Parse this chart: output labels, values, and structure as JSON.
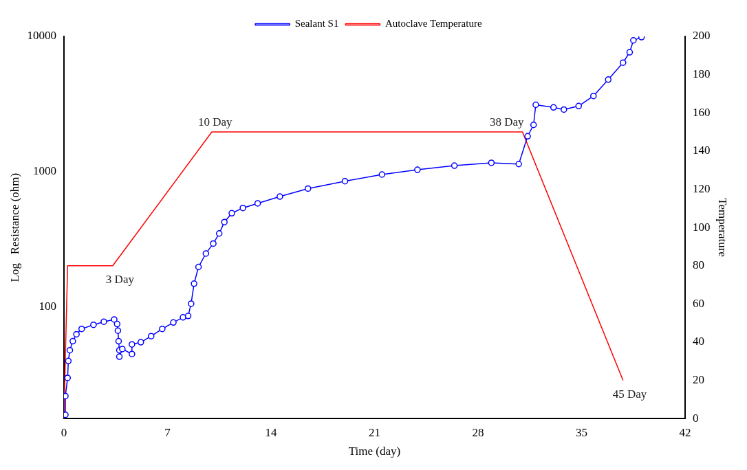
{
  "chart_data": {
    "type": "line",
    "xlabel": "Time (day)",
    "ylabel": "Log   Resistance (ohm)",
    "y2label": "Temperature",
    "xlim": [
      0,
      42
    ],
    "xticks": [
      0,
      7,
      14,
      21,
      28,
      35,
      42
    ],
    "ylim": [
      15,
      10000
    ],
    "yticks": [
      100,
      1000,
      10000
    ],
    "log": "y",
    "y2lim": [
      0,
      200
    ],
    "y2ticks": [
      0,
      20,
      40,
      60,
      80,
      100,
      120,
      140,
      160,
      180,
      200
    ],
    "grid": false,
    "legend": "top",
    "annotations": [
      {
        "text": "3 Day",
        "x": 3.3,
        "y": 206
      },
      {
        "text": "10 Day",
        "x": 10,
        "y": 2000
      },
      {
        "text": "38 Day",
        "x": 31,
        "y": 2000
      },
      {
        "text": "45 Day",
        "x": 37.8,
        "y": 29
      }
    ],
    "series": [
      {
        "name": "Autoclave Temperature",
        "color": "#ff0000",
        "axis": "y2",
        "marker": "none",
        "x": [
          0,
          0.25,
          3.3,
          10,
          31,
          37.8
        ],
        "values": [
          0,
          80,
          80,
          150,
          150,
          20
        ]
      },
      {
        "name": "Sealant S1",
        "color": "#0000ff",
        "marker": "circle",
        "x": [
          0.1,
          0.1,
          0.25,
          0.3,
          0.4,
          0.6,
          0.85,
          1.2,
          2.0,
          2.7,
          3.4,
          3.6,
          3.65,
          3.7,
          3.75,
          3.75,
          3.95,
          4.6,
          4.6,
          5.2,
          5.9,
          6.65,
          7.4,
          8.05,
          8.4,
          8.6,
          8.8,
          9.1,
          9.6,
          10.1,
          10.5,
          10.85,
          11.35,
          12.1,
          13.1,
          14.6,
          16.5,
          19.0,
          21.5,
          23.9,
          26.4,
          28.9,
          30.75,
          31.35,
          31.75,
          31.9,
          33.1,
          33.8,
          34.8,
          35.8,
          36.8,
          37.8,
          38.25,
          38.5,
          39.05
        ],
        "values": [
          16,
          22,
          30,
          40,
          48,
          56,
          63,
          69,
          74,
          78,
          81,
          75,
          67,
          56,
          48,
          43,
          49,
          45,
          53,
          55,
          61,
          69,
          77,
          84,
          86,
          106,
          149,
          198,
          249,
          295,
          350,
          425,
          494,
          540,
          584,
          656,
          751,
          852,
          954,
          1035,
          1110,
          1165,
          1140,
          1830,
          2220,
          3125,
          2990,
          2880,
          3060,
          3630,
          4800,
          6400,
          7640,
          9350,
          9870
        ]
      }
    ]
  }
}
